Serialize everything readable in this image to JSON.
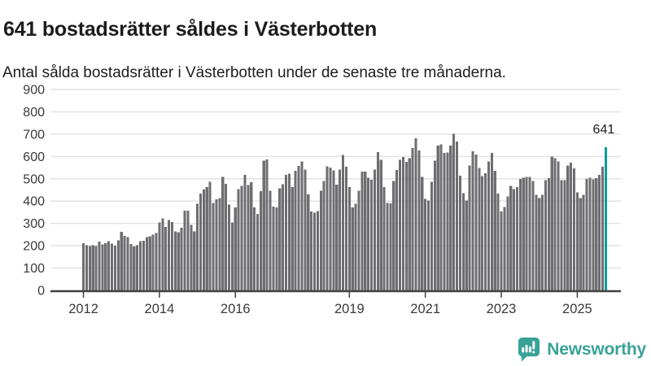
{
  "header": {
    "title": "641 bostadsrätter såldes i Västerbotten",
    "subtitle": "Antal sålda bostadsrätter i Västerbotten under de senaste tre månaderna."
  },
  "chart_data": {
    "type": "bar",
    "title": "641 bostadsrätter såldes i Västerbotten",
    "subtitle": "Antal sålda bostadsrätter i Västerbotten under de senaste tre månaderna.",
    "x_frequency": "monthly",
    "x_start": "2012-01",
    "x_end": "2025-10",
    "x_start_year": 2012,
    "ylim": [
      0,
      900
    ],
    "yticks": [
      0,
      100,
      200,
      300,
      400,
      500,
      600,
      700,
      800,
      900
    ],
    "xtick_years": [
      2012,
      2014,
      2016,
      2019,
      2021,
      2023,
      2025
    ],
    "grid": true,
    "legend": "none",
    "annotation": {
      "text": "641",
      "applies_to": "last-bar"
    },
    "highlight_last_bar": true,
    "colors": {
      "bar": "#6e6e71",
      "highlight": "#009e9e",
      "grid": "#e2e2e2",
      "axis": "#424242",
      "tick_text": "#3a3a3a",
      "annotation_text": "#1c1c1c"
    },
    "values": [
      211,
      203,
      198,
      203,
      198,
      218,
      205,
      211,
      221,
      209,
      200,
      225,
      262,
      244,
      238,
      208,
      196,
      202,
      220,
      222,
      238,
      242,
      250,
      256,
      305,
      323,
      284,
      315,
      307,
      265,
      261,
      281,
      357,
      357,
      293,
      265,
      388,
      433,
      451,
      463,
      487,
      392,
      408,
      414,
      509,
      478,
      384,
      305,
      372,
      453,
      469,
      518,
      471,
      484,
      372,
      342,
      445,
      581,
      587,
      446,
      375,
      371,
      457,
      475,
      518,
      522,
      463,
      536,
      558,
      578,
      541,
      430,
      354,
      348,
      356,
      446,
      490,
      555,
      550,
      537,
      474,
      542,
      606,
      553,
      463,
      371,
      388,
      446,
      532,
      532,
      504,
      496,
      542,
      619,
      584,
      463,
      392,
      390,
      490,
      540,
      584,
      597,
      576,
      593,
      637,
      682,
      627,
      509,
      410,
      402,
      487,
      582,
      648,
      654,
      615,
      617,
      649,
      702,
      667,
      514,
      435,
      402,
      560,
      623,
      609,
      548,
      512,
      524,
      578,
      615,
      536,
      433,
      354,
      374,
      420,
      469,
      453,
      463,
      500,
      505,
      509,
      509,
      490,
      429,
      414,
      429,
      493,
      502,
      599,
      593,
      577,
      493,
      493,
      560,
      572,
      546,
      439,
      414,
      429,
      499,
      505,
      497,
      502,
      518,
      554,
      641
    ]
  },
  "footer": {
    "brand_name": "Newsworthy",
    "brand_color": "#38a296",
    "logo_icon": "bar-chart-speech-bubble"
  }
}
